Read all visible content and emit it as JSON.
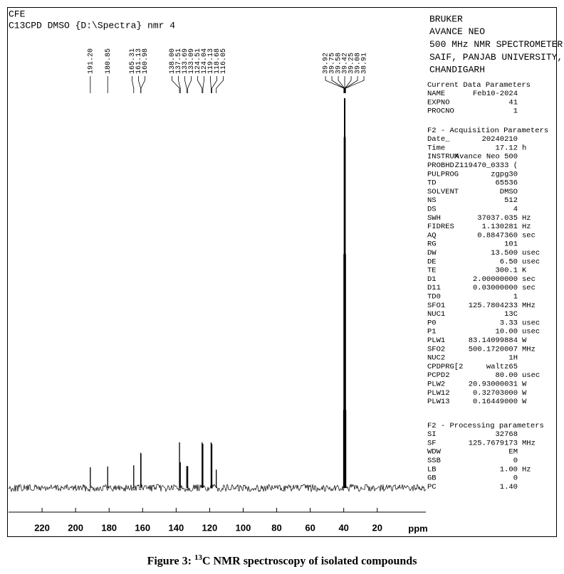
{
  "header": {
    "lines": [
      "CFE",
      "C13CPD DMSO {D:\\Spectra} nmr 4"
    ]
  },
  "instrument": [
    "BRUKER",
    "AVANCE NEO",
    "500 MHz NMR SPECTROMETER",
    "SAIF, PANJAB UNIVERSITY,",
    "CHANDIGARH"
  ],
  "parameters": [
    {
      "title": "Current Data Parameters",
      "rows": [
        [
          "NAME",
          "Feb10-2024",
          ""
        ],
        [
          "EXPNO",
          "41",
          ""
        ],
        [
          "PROCNO",
          "1",
          ""
        ]
      ]
    },
    {
      "title": "F2 - Acquisition Parameters",
      "rows": [
        [
          "Date_",
          "20240210",
          ""
        ],
        [
          "Time",
          "17.12",
          "h"
        ],
        [
          "INSTRUM",
          "Avance Neo 500",
          ""
        ],
        [
          "PROBHD",
          "Z119470_0333 (",
          ""
        ],
        [
          "PULPROG",
          "zgpg30",
          ""
        ],
        [
          "TD",
          "65536",
          ""
        ],
        [
          "SOLVENT",
          "DMSO",
          ""
        ],
        [
          "NS",
          "512",
          ""
        ],
        [
          "DS",
          "4",
          ""
        ],
        [
          "SWH",
          "37037.035",
          "Hz"
        ],
        [
          "FIDRES",
          "1.130281",
          "Hz"
        ],
        [
          "AQ",
          "0.8847360",
          "sec"
        ],
        [
          "RG",
          "101",
          ""
        ],
        [
          "DW",
          "13.500",
          "usec"
        ],
        [
          "DE",
          "6.50",
          "usec"
        ],
        [
          "TE",
          "300.1",
          "K"
        ],
        [
          "D1",
          "2.00000000",
          "sec"
        ],
        [
          "D11",
          "0.03000000",
          "sec"
        ],
        [
          "TD0",
          "1",
          ""
        ],
        [
          "SFO1",
          "125.7804233",
          "MHz"
        ],
        [
          "NUC1",
          "13C",
          ""
        ],
        [
          "P0",
          "3.33",
          "usec"
        ],
        [
          "P1",
          "10.00",
          "usec"
        ],
        [
          "PLW1",
          "83.14099884",
          "W"
        ],
        [
          "SFO2",
          "500.1720007",
          "MHz"
        ],
        [
          "NUC2",
          "1H",
          ""
        ],
        [
          "CPDPRG[2",
          "waltz65",
          ""
        ],
        [
          "PCPD2",
          "80.00",
          "usec"
        ],
        [
          "PLW2",
          "20.93000031",
          "W"
        ],
        [
          "PLW12",
          "0.32703000",
          "W"
        ],
        [
          "PLW13",
          "0.16449000",
          "W"
        ]
      ]
    },
    {
      "title": "F2 - Processing parameters",
      "rows": [
        [
          "SI",
          "32768",
          ""
        ],
        [
          "SF",
          "125.7679173",
          "MHz"
        ],
        [
          "WDW",
          "EM",
          ""
        ],
        [
          "SSB",
          "0",
          ""
        ],
        [
          "LB",
          "1.00",
          "Hz"
        ],
        [
          "GB",
          "0",
          ""
        ],
        [
          "PC",
          "1.40",
          ""
        ]
      ]
    }
  ],
  "chart_data": {
    "type": "nmr",
    "xlabel": "ppm",
    "xlim": [
      240,
      -9
    ],
    "ylim": [
      0,
      100
    ],
    "xticks": [
      220,
      200,
      180,
      160,
      140,
      120,
      100,
      80,
      60,
      40,
      20
    ],
    "x": [
      191.2,
      180.85,
      165.31,
      161.13,
      160.98,
      138,
      137.51,
      133.69,
      133.09,
      124.51,
      124.04,
      119.13,
      118.68,
      116.05,
      39.92,
      39.75,
      39.58,
      39.42,
      39.25,
      39.08,
      38.91
    ],
    "x_labels": [
      "191.20",
      "180.85",
      "165.31",
      "161.13",
      "160.98",
      "138.00",
      "137.51",
      "133.69",
      "133.09",
      "124.51",
      "124.04",
      "119.13",
      "118.68",
      "116.05",
      "39.92",
      "39.75",
      "39.58",
      "39.42",
      "39.25",
      "39.08",
      "38.91"
    ],
    "values": [
      5.3,
      5.5,
      5.8,
      9,
      8.8,
      11.7,
      6.6,
      5.6,
      5.6,
      11.7,
      11.3,
      11.7,
      11.3,
      4.7,
      20,
      60,
      90,
      100,
      90,
      60,
      20
    ],
    "color": "#000000"
  },
  "caption": {
    "prefix": "Figure 3: ",
    "superscript": "13",
    "text": "C NMR spectroscopy of isolated compounds"
  }
}
